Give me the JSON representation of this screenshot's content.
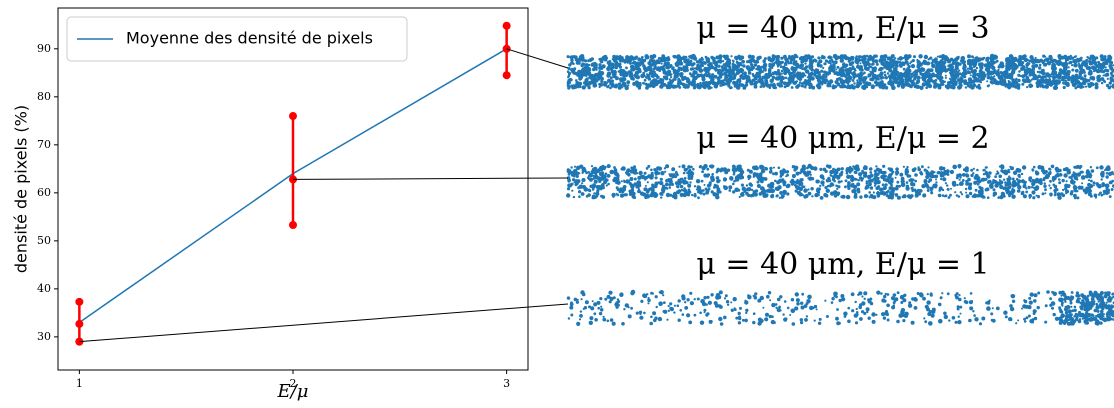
{
  "chart_data": {
    "type": "line",
    "x": [
      1,
      2,
      3
    ],
    "xlim": [
      0.9,
      3.1
    ],
    "xticks": [
      1,
      2,
      3
    ],
    "ylim": [
      23.1,
      98.5
    ],
    "yticks": [
      30,
      40,
      50,
      60,
      70,
      80,
      90
    ],
    "x_label": "E/μ",
    "y_label": "densité de pixels (%)",
    "legend": "upper left",
    "series": [
      {
        "name": "Moyenne des densité de pixels",
        "color": "#1f77b4",
        "values": [
          33,
          64,
          90
        ]
      }
    ],
    "error_bars": {
      "color": "#ff0000",
      "center": [
        29,
        62.8,
        90
      ],
      "low": [
        29,
        53.3,
        84.5
      ],
      "high": [
        37.3,
        76,
        94.8
      ],
      "extra": [
        32.7,
        null,
        null
      ]
    },
    "annotations": [
      "μ = 40 μm, E/μ = 3",
      "μ = 40 μm, E/μ = 2",
      "μ = 40 μm, E/μ = 1"
    ]
  }
}
